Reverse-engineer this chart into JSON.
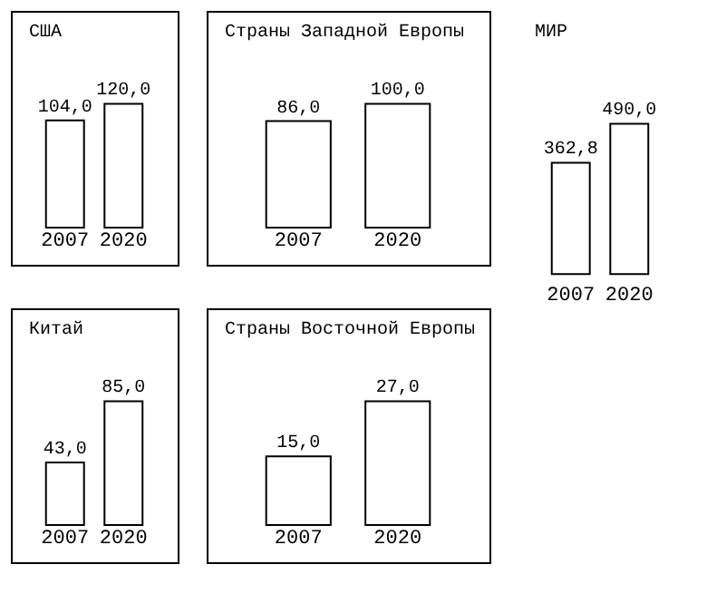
{
  "chart_data": [
    {
      "type": "bar",
      "title": "США",
      "categories": [
        "2007",
        "2020"
      ],
      "values": [
        104.0,
        120.0
      ],
      "color": "#ffffff",
      "value_labels": [
        "104,0",
        "120,0"
      ]
    },
    {
      "type": "bar",
      "title": "Страны Западной Европы",
      "categories": [
        "2007",
        "2020"
      ],
      "values": [
        86.0,
        100.0
      ],
      "color": "#ffffff",
      "value_labels": [
        "86,0",
        "100,0"
      ]
    },
    {
      "type": "bar",
      "title": "Китай",
      "categories": [
        "2007",
        "2020"
      ],
      "values": [
        43.0,
        85.0
      ],
      "color": "#ffffff",
      "value_labels": [
        "43,0",
        "85,0"
      ]
    },
    {
      "type": "bar",
      "title": "Страны Восточной Европы",
      "categories": [
        "2007",
        "2020"
      ],
      "values": [
        15.0,
        27.0
      ],
      "color": "#ffffff",
      "value_labels": [
        "15,0",
        "27,0"
      ]
    },
    {
      "type": "bar",
      "title": "МИР",
      "categories": [
        "2007",
        "2020"
      ],
      "values": [
        362.8,
        490.0
      ],
      "color": "#ffffff",
      "value_labels": [
        "362,8",
        "490,0"
      ]
    }
  ]
}
